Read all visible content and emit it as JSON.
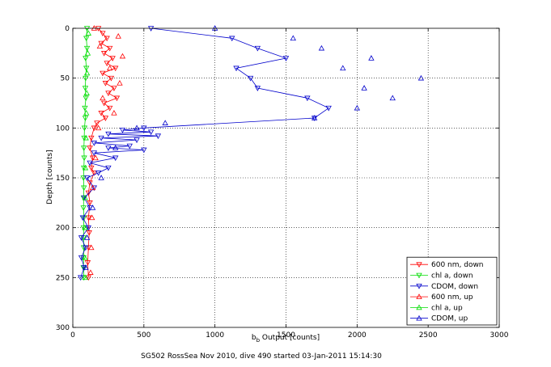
{
  "chart_data": {
    "type": "scatter",
    "title": "",
    "xlabel_main": "b",
    "xlabel_sub": "b",
    "xlabel_rest": " Output [counts]",
    "ylabel": "Depth [counts]",
    "footer": "SG502 RossSea Nov 2010, dive 490 started 03-Jan-2011 15:14:30",
    "xlim": [
      0,
      3000
    ],
    "ylim": [
      0,
      300
    ],
    "y_reversed": true,
    "grid": true,
    "xticks": [
      "0",
      "500",
      "1000",
      "1500",
      "2000",
      "2500",
      "3000"
    ],
    "yticks": [
      "0",
      "50",
      "100",
      "150",
      "200",
      "250",
      "300"
    ],
    "legend_position": "bottom-right",
    "series": [
      {
        "name": "600 nm, down",
        "color": "#ff0000",
        "marker": "triangle-down",
        "line": true,
        "points": [
          [
            180,
            0
          ],
          [
            210,
            5
          ],
          [
            240,
            10
          ],
          [
            200,
            15
          ],
          [
            260,
            20
          ],
          [
            220,
            25
          ],
          [
            280,
            30
          ],
          [
            240,
            35
          ],
          [
            300,
            40
          ],
          [
            210,
            45
          ],
          [
            270,
            50
          ],
          [
            230,
            55
          ],
          [
            290,
            60
          ],
          [
            250,
            65
          ],
          [
            310,
            70
          ],
          [
            220,
            75
          ],
          [
            260,
            80
          ],
          [
            200,
            85
          ],
          [
            230,
            90
          ],
          [
            170,
            95
          ],
          [
            150,
            100
          ],
          [
            130,
            110
          ],
          [
            120,
            120
          ],
          [
            140,
            130
          ],
          [
            130,
            140
          ],
          [
            150,
            145
          ],
          [
            120,
            155
          ],
          [
            110,
            165
          ],
          [
            120,
            175
          ],
          [
            110,
            190
          ],
          [
            115,
            205
          ],
          [
            110,
            220
          ],
          [
            105,
            235
          ],
          [
            110,
            250
          ]
        ]
      },
      {
        "name": "chl a, down",
        "color": "#00dd00",
        "marker": "triangle-down",
        "line": true,
        "points": [
          [
            100,
            0
          ],
          [
            95,
            10
          ],
          [
            100,
            20
          ],
          [
            90,
            30
          ],
          [
            95,
            40
          ],
          [
            90,
            50
          ],
          [
            88,
            60
          ],
          [
            92,
            70
          ],
          [
            85,
            80
          ],
          [
            88,
            90
          ],
          [
            82,
            100
          ],
          [
            80,
            110
          ],
          [
            78,
            120
          ],
          [
            80,
            130
          ],
          [
            78,
            140
          ],
          [
            75,
            150
          ],
          [
            78,
            160
          ],
          [
            76,
            170
          ],
          [
            75,
            180
          ],
          [
            78,
            190
          ],
          [
            76,
            200
          ],
          [
            75,
            210
          ],
          [
            77,
            220
          ],
          [
            76,
            230
          ],
          [
            75,
            240
          ],
          [
            78,
            250
          ]
        ]
      },
      {
        "name": "CDOM, down",
        "color": "#0000cc",
        "marker": "triangle-down",
        "line": true,
        "points": [
          [
            550,
            0
          ],
          [
            1120,
            10
          ],
          [
            1300,
            20
          ],
          [
            1500,
            30
          ],
          [
            1150,
            40
          ],
          [
            1250,
            50
          ],
          [
            1300,
            60
          ],
          [
            1650,
            70
          ],
          [
            1800,
            80
          ],
          [
            1700,
            90
          ],
          [
            500,
            100
          ],
          [
            350,
            102
          ],
          [
            550,
            104
          ],
          [
            250,
            106
          ],
          [
            600,
            108
          ],
          [
            200,
            110
          ],
          [
            450,
            112
          ],
          [
            150,
            115
          ],
          [
            400,
            118
          ],
          [
            250,
            120
          ],
          [
            500,
            122
          ],
          [
            150,
            125
          ],
          [
            300,
            130
          ],
          [
            120,
            135
          ],
          [
            250,
            140
          ],
          [
            180,
            145
          ],
          [
            100,
            150
          ],
          [
            150,
            160
          ],
          [
            80,
            170
          ],
          [
            120,
            180
          ],
          [
            70,
            190
          ],
          [
            110,
            200
          ],
          [
            60,
            210
          ],
          [
            90,
            220
          ],
          [
            60,
            230
          ],
          [
            80,
            240
          ],
          [
            55,
            250
          ]
        ]
      },
      {
        "name": "600 nm, up",
        "color": "#ff0000",
        "marker": "triangle-up",
        "line": false,
        "points": [
          [
            150,
            0
          ],
          [
            320,
            8
          ],
          [
            190,
            18
          ],
          [
            350,
            28
          ],
          [
            260,
            40
          ],
          [
            330,
            55
          ],
          [
            210,
            70
          ],
          [
            290,
            85
          ],
          [
            180,
            100
          ],
          [
            160,
            130
          ],
          [
            140,
            160
          ],
          [
            135,
            190
          ],
          [
            130,
            220
          ],
          [
            125,
            245
          ]
        ]
      },
      {
        "name": "chl a, up",
        "color": "#00dd00",
        "marker": "triangle-up",
        "line": false,
        "points": [
          [
            110,
            5
          ],
          [
            105,
            25
          ],
          [
            100,
            45
          ],
          [
            98,
            65
          ],
          [
            95,
            85
          ],
          [
            92,
            110
          ],
          [
            88,
            140
          ],
          [
            86,
            170
          ],
          [
            85,
            200
          ],
          [
            84,
            230
          ],
          [
            86,
            250
          ]
        ]
      },
      {
        "name": "CDOM, up",
        "color": "#0000cc",
        "marker": "triangle-up",
        "line": false,
        "points": [
          [
            1000,
            0
          ],
          [
            1550,
            10
          ],
          [
            1750,
            20
          ],
          [
            2100,
            30
          ],
          [
            1900,
            40
          ],
          [
            2450,
            50
          ],
          [
            2050,
            60
          ],
          [
            2250,
            70
          ],
          [
            2000,
            80
          ],
          [
            1700,
            90
          ],
          [
            650,
            95
          ],
          [
            450,
            100
          ],
          [
            300,
            120
          ],
          [
            200,
            150
          ],
          [
            140,
            180
          ],
          [
            100,
            210
          ],
          [
            90,
            240
          ]
        ]
      }
    ]
  }
}
